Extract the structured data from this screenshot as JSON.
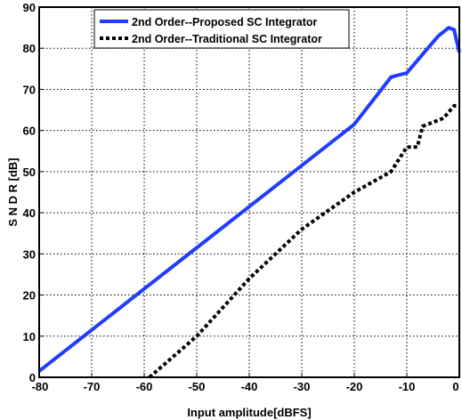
{
  "chart_data": {
    "type": "line",
    "xlabel": "Input amplitude[dBFS]",
    "ylabel": "S N D R [dB]",
    "xlim": [
      -80,
      0
    ],
    "ylim": [
      0,
      90
    ],
    "xticks": [
      "-80",
      "-70",
      "-60",
      "-50",
      "-40",
      "-30",
      "-20",
      "-10",
      "0"
    ],
    "yticks": [
      "0",
      "10",
      "20",
      "30",
      "40",
      "50",
      "60",
      "70",
      "80",
      "90"
    ],
    "grid": true,
    "legend_position": "top",
    "series": [
      {
        "name": "2nd Order--Proposed SC Integrator",
        "color": "#1f3dff",
        "style": "solid",
        "points": [
          [
            -80,
            1.5
          ],
          [
            -60,
            21.5
          ],
          [
            -40,
            41.5
          ],
          [
            -20,
            61.5
          ],
          [
            -13,
            73
          ],
          [
            -10,
            74
          ],
          [
            -8,
            77
          ],
          [
            -6,
            80
          ],
          [
            -4,
            83
          ],
          [
            -2,
            85
          ],
          [
            -1,
            84.5
          ],
          [
            0,
            79
          ]
        ]
      },
      {
        "name": "2nd Order--Traditional SC Integrator",
        "color": "#000000",
        "style": "dotted",
        "points": [
          [
            -59,
            0
          ],
          [
            -50,
            10
          ],
          [
            -40,
            24
          ],
          [
            -30,
            36
          ],
          [
            -20,
            45
          ],
          [
            -13,
            50
          ],
          [
            -10,
            56
          ],
          [
            -8,
            56
          ],
          [
            -7,
            61
          ],
          [
            -5,
            62
          ],
          [
            -3,
            63
          ],
          [
            -1,
            66
          ],
          [
            0,
            66
          ]
        ]
      }
    ]
  }
}
